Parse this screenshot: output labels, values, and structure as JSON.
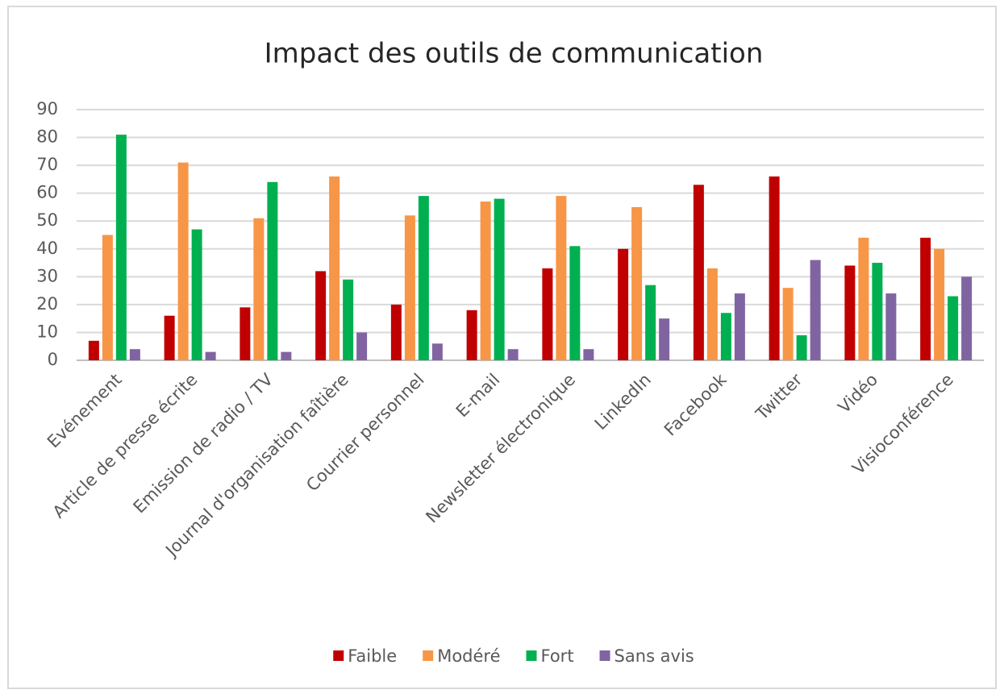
{
  "chart_data": {
    "type": "bar",
    "title": "Impact des outils de communication",
    "categories": [
      "Evénement",
      "Article de presse écrite",
      "Emission de radio / TV",
      "Journal d'organisation faîtière",
      "Courrier personnel",
      "E-mail",
      "Newsletter électronique",
      "LinkedIn",
      "Facebook",
      "Twitter",
      "Vidéo",
      "Visioconférence"
    ],
    "series": [
      {
        "name": "Faible",
        "color": "#c00000",
        "values": [
          7,
          16,
          19,
          32,
          20,
          18,
          33,
          40,
          63,
          66,
          34,
          44
        ]
      },
      {
        "name": "Modéré",
        "color": "#f79646",
        "values": [
          45,
          71,
          51,
          66,
          52,
          57,
          59,
          55,
          33,
          26,
          44,
          40
        ]
      },
      {
        "name": "Fort",
        "color": "#00b050",
        "values": [
          81,
          47,
          64,
          29,
          59,
          58,
          41,
          27,
          17,
          9,
          35,
          23
        ]
      },
      {
        "name": "Sans avis",
        "color": "#8064a2",
        "values": [
          4,
          3,
          3,
          10,
          6,
          4,
          4,
          15,
          24,
          36,
          24,
          30
        ]
      }
    ],
    "ylim": [
      0,
      90
    ],
    "yticks": [
      0,
      10,
      20,
      30,
      40,
      50,
      60,
      70,
      80,
      90
    ],
    "grid": true,
    "legend": "bottom"
  }
}
